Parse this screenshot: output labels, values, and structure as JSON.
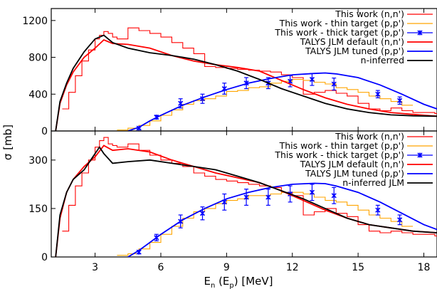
{
  "chart_data": [
    {
      "type": "line",
      "panel": "top",
      "xlabel": "E",
      "xlabel_sub": "n",
      "xlabel_mid": " (E",
      "xlabel_sub2": "p",
      "xlabel_tail": ") [MeV]",
      "ylabel": "σ [mb]",
      "xlim": [
        1.0,
        18.6
      ],
      "ylim": [
        0,
        1330
      ],
      "xticks": [
        3,
        6,
        9,
        12,
        15,
        18
      ],
      "yticks": [
        0,
        400,
        800,
        1200
      ],
      "legend_position": "top-right",
      "series": [
        {
          "name": "This work (n,n')",
          "style": "histogram",
          "color": "#ff0000",
          "x": [
            1.5,
            1.8,
            2.1,
            2.4,
            2.7,
            3.0,
            3.2,
            3.4,
            3.6,
            3.8,
            4.0,
            4.5,
            5.0,
            5.5,
            6.0,
            6.5,
            7.0,
            7.5,
            8.0,
            8.5,
            9.0,
            9.5,
            10.0,
            10.5,
            11.0,
            11.5,
            12.0,
            12.5,
            13.0,
            13.5,
            14.0,
            14.5,
            15.0,
            15.5,
            16.0,
            16.5,
            17.0,
            17.5,
            18.0,
            18.5
          ],
          "y": [
            240,
            420,
            600,
            760,
            880,
            1000,
            1040,
            1080,
            1060,
            1020,
            1000,
            1120,
            1090,
            1060,
            1020,
            960,
            900,
            840,
            700,
            690,
            680,
            670,
            660,
            650,
            640,
            610,
            580,
            400,
            420,
            440,
            410,
            380,
            300,
            240,
            220,
            250,
            220,
            200,
            200,
            190
          ]
        },
        {
          "name": "This work - thin target (p,p')",
          "style": "histogram",
          "color": "#ffa500",
          "x": [
            4.0,
            4.5,
            5.0,
            5.5,
            6.0,
            6.5,
            7.0,
            7.5,
            8.0,
            8.5,
            9.0,
            9.5,
            10.0,
            10.5,
            11.0,
            11.5,
            12.0,
            12.5,
            13.0,
            13.5,
            14.0,
            14.5,
            15.0,
            15.5,
            16.0,
            16.5,
            17.0
          ],
          "y": [
            10,
            30,
            60,
            110,
            170,
            230,
            290,
            330,
            350,
            380,
            430,
            440,
            470,
            480,
            520,
            540,
            560,
            550,
            530,
            510,
            470,
            450,
            420,
            380,
            350,
            320,
            280
          ]
        },
        {
          "name": "This work - thick target (p,p')",
          "style": "points",
          "color": "#0000ff",
          "x": [
            5.0,
            5.8,
            6.9,
            7.9,
            8.9,
            9.9,
            10.9,
            11.9,
            12.9,
            13.9,
            15.9,
            16.9
          ],
          "y": [
            30,
            150,
            300,
            350,
            460,
            520,
            520,
            540,
            560,
            510,
            400,
            330
          ],
          "err": [
            10,
            20,
            50,
            50,
            60,
            60,
            60,
            60,
            65,
            65,
            40,
            40
          ]
        },
        {
          "name": "TALYS JLM default (n,n')",
          "style": "line",
          "color": "#ff0000",
          "x": [
            1.2,
            1.4,
            1.7,
            2.0,
            2.5,
            3.0,
            3.4,
            3.8,
            4.5,
            5.5,
            6.5,
            7.5,
            8.5,
            9.5,
            10.5,
            11.5,
            12.5,
            13.5,
            14.5,
            15.5,
            16.5,
            17.5,
            18.6
          ],
          "y": [
            0,
            300,
            500,
            640,
            800,
            900,
            990,
            950,
            940,
            900,
            820,
            760,
            720,
            690,
            650,
            550,
            450,
            360,
            290,
            240,
            200,
            180,
            160
          ]
        },
        {
          "name": "TALYS JLM tuned (p,p')",
          "style": "line",
          "color": "#0000ff",
          "x": [
            4.5,
            5.0,
            5.5,
            6.0,
            7.0,
            8.0,
            9.0,
            10.0,
            11.0,
            12.0,
            13.0,
            13.5,
            14.0,
            15.0,
            16.0,
            17.0,
            18.0,
            18.6
          ],
          "y": [
            0,
            40,
            110,
            170,
            280,
            370,
            450,
            520,
            570,
            610,
            625,
            630,
            620,
            580,
            500,
            400,
            290,
            240
          ]
        },
        {
          "name": "n-inferred",
          "style": "line",
          "color": "#000000",
          "x": [
            1.2,
            1.4,
            1.7,
            2.0,
            2.5,
            3.0,
            3.4,
            3.8,
            4.5,
            5.5,
            6.5,
            7.5,
            8.5,
            9.5,
            10.5,
            11.5,
            12.5,
            13.5,
            14.5,
            15.5,
            16.5,
            17.5,
            18.6
          ],
          "y": [
            0,
            320,
            520,
            680,
            860,
            1000,
            1040,
            960,
            900,
            850,
            820,
            780,
            720,
            650,
            560,
            460,
            380,
            300,
            240,
            200,
            175,
            165,
            160
          ]
        }
      ]
    },
    {
      "type": "line",
      "panel": "bottom",
      "xlim": [
        1.0,
        18.6
      ],
      "ylim": [
        0,
        390
      ],
      "xticks": [
        3,
        6,
        9,
        12,
        15,
        18
      ],
      "yticks": [
        0,
        150,
        300
      ],
      "legend_position": "top-right",
      "series": [
        {
          "name": "This work (n,n')",
          "style": "histogram",
          "color": "#ff0000",
          "x": [
            1.5,
            1.8,
            2.1,
            2.4,
            2.7,
            3.0,
            3.2,
            3.4,
            3.6,
            3.8,
            4.0,
            4.5,
            5.0,
            5.5,
            6.0,
            6.5,
            7.0,
            7.5,
            8.0,
            8.5,
            9.0,
            9.5,
            10.0,
            10.5,
            11.0,
            11.5,
            12.0,
            12.5,
            13.0,
            13.5,
            14.0,
            14.5,
            15.0,
            15.5,
            16.0,
            16.5,
            17.0,
            17.5,
            18.0,
            18.5
          ],
          "y": [
            80,
            160,
            220,
            260,
            300,
            340,
            360,
            370,
            350,
            345,
            340,
            350,
            330,
            315,
            300,
            290,
            280,
            260,
            250,
            240,
            235,
            230,
            225,
            220,
            215,
            200,
            190,
            130,
            140,
            150,
            135,
            125,
            100,
            80,
            75,
            80,
            75,
            70,
            70,
            65
          ]
        },
        {
          "name": "This work - thin target (p,p')",
          "style": "histogram",
          "color": "#ffa500",
          "x": [
            4.0,
            4.5,
            5.0,
            5.5,
            6.0,
            6.5,
            7.0,
            7.5,
            8.0,
            8.5,
            9.0,
            9.5,
            10.0,
            10.5,
            11.0,
            11.5,
            12.0,
            12.5,
            13.0,
            13.5,
            14.0,
            14.5,
            15.0,
            15.5,
            16.0,
            16.5,
            17.0
          ],
          "y": [
            5,
            10,
            25,
            45,
            70,
            95,
            120,
            140,
            150,
            165,
            175,
            180,
            190,
            190,
            195,
            200,
            200,
            195,
            185,
            175,
            170,
            160,
            145,
            130,
            120,
            110,
            95
          ]
        },
        {
          "name": "This work - thick target (p,p')",
          "style": "points",
          "color": "#0000ff",
          "x": [
            5.0,
            5.8,
            6.9,
            7.9,
            8.9,
            9.9,
            10.9,
            11.9,
            12.9,
            13.9,
            15.9,
            16.9
          ],
          "y": [
            15,
            60,
            110,
            135,
            170,
            185,
            185,
            195,
            200,
            190,
            145,
            115
          ],
          "err": [
            5,
            10,
            20,
            20,
            25,
            25,
            25,
            25,
            25,
            25,
            15,
            15
          ]
        },
        {
          "name": "TALYS JLM default (n,n')",
          "style": "line",
          "color": "#ff0000",
          "x": [
            1.2,
            1.4,
            1.7,
            2.0,
            2.5,
            3.0,
            3.4,
            3.8,
            4.5,
            5.5,
            6.5,
            7.5,
            8.5,
            9.5,
            10.5,
            11.5,
            12.5,
            13.5,
            14.5,
            15.5,
            16.5,
            17.5,
            18.6
          ],
          "y": [
            0,
            120,
            200,
            240,
            280,
            310,
            345,
            330,
            335,
            325,
            300,
            280,
            260,
            245,
            230,
            205,
            175,
            145,
            120,
            100,
            90,
            80,
            75
          ]
        },
        {
          "name": "TALYS JLM tuned (p,p')",
          "style": "line",
          "color": "#0000ff",
          "x": [
            4.5,
            5.0,
            5.5,
            6.0,
            7.0,
            8.0,
            9.0,
            10.0,
            11.0,
            12.0,
            13.0,
            13.5,
            14.0,
            15.0,
            16.0,
            17.0,
            18.0,
            18.6
          ],
          "y": [
            0,
            20,
            45,
            70,
            115,
            150,
            180,
            200,
            215,
            225,
            228,
            227,
            220,
            200,
            170,
            135,
            100,
            85
          ]
        },
        {
          "name": "n-inferred JLM",
          "style": "line",
          "color": "#000000",
          "x": [
            1.2,
            1.4,
            1.7,
            2.0,
            2.5,
            3.0,
            3.2,
            3.4,
            3.8,
            4.5,
            5.5,
            6.5,
            7.5,
            8.5,
            9.5,
            10.5,
            11.5,
            12.5,
            13.5,
            14.5,
            15.5,
            16.5,
            17.5,
            18.6
          ],
          "y": [
            0,
            130,
            200,
            240,
            270,
            320,
            340,
            320,
            290,
            295,
            300,
            290,
            280,
            270,
            250,
            230,
            205,
            180,
            150,
            120,
            100,
            90,
            80,
            75
          ]
        }
      ]
    }
  ]
}
